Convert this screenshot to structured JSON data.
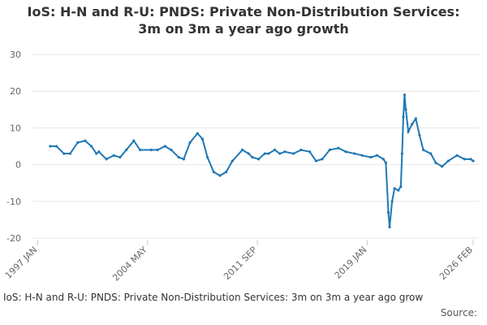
{
  "chart_data": {
    "type": "line",
    "title": "IoS: H-N and R-U: PNDS: Private Non-Distribution Services: 3m on 3m a year ago growth",
    "footer": "IoS: H-N and R-U: PNDS: Private Non-Distribution Services: 3m on 3m a year ago grow",
    "source": "Source:",
    "xlim": [
      0,
      349
    ],
    "xticks": [
      {
        "value": 0,
        "label": "1997 JAN"
      },
      {
        "value": 88,
        "label": "2004 MAY"
      },
      {
        "value": 176,
        "label": "2011 SEP"
      },
      {
        "value": 264,
        "label": "2019 JAN"
      },
      {
        "value": 349,
        "label": "2026 FEB"
      }
    ],
    "ylim": [
      -20,
      30
    ],
    "yticks": [
      -20,
      -10,
      0,
      10,
      20,
      30
    ],
    "grid": true,
    "series": [
      {
        "color": "#1f78b4",
        "x": [
          10,
          15,
          21,
          26,
          32,
          38,
          43,
          47,
          49,
          55,
          61,
          66,
          71,
          77,
          82,
          91,
          96,
          102,
          107,
          113,
          117,
          122,
          128,
          132,
          136,
          141,
          146,
          151,
          156,
          164,
          169,
          172,
          177,
          182,
          185,
          190,
          194,
          198,
          205,
          211,
          218,
          223,
          228,
          234,
          241,
          247,
          254,
          260,
          267,
          272,
          277,
          279,
          281,
          282,
          284,
          286,
          289,
          291,
          292,
          293,
          294,
          295,
          297,
          300,
          303,
          306,
          309,
          315,
          319,
          324,
          329,
          336,
          342,
          347,
          349
        ],
        "values": [
          5,
          5,
          3,
          3,
          6,
          6.5,
          5,
          3,
          3.5,
          1.5,
          2.5,
          2,
          4,
          6.5,
          4,
          4,
          4,
          5,
          4,
          2,
          1.5,
          6,
          8.5,
          7,
          2,
          -2,
          -3,
          -2,
          1,
          4,
          3,
          2,
          1.5,
          3,
          3,
          4,
          3,
          3.5,
          3,
          4,
          3.5,
          1,
          1.5,
          4,
          4.5,
          3.5,
          3,
          2.5,
          2,
          2.5,
          1.5,
          0.5,
          -13,
          -17,
          -10,
          -6.5,
          -7,
          -6,
          3,
          13,
          19,
          15,
          9,
          11,
          12.5,
          8,
          4,
          3,
          0.5,
          -0.5,
          1,
          2.5,
          1.5,
          1.5,
          1
        ]
      }
    ]
  }
}
